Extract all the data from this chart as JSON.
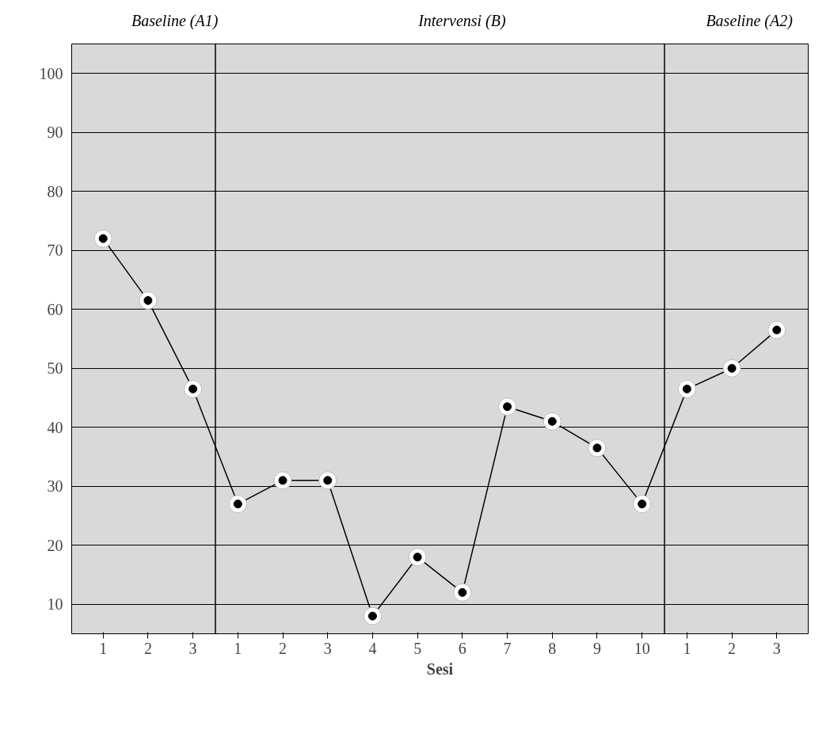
{
  "chart_data": {
    "type": "line",
    "xlabel": "Sesi",
    "categories": [
      "1",
      "2",
      "3",
      "1",
      "2",
      "3",
      "4",
      "5",
      "6",
      "7",
      "8",
      "9",
      "10",
      "1",
      "2",
      "3"
    ],
    "series": [
      {
        "color": "#000000",
        "values": [
          72,
          61.5,
          46.5,
          27,
          31,
          31,
          8,
          18,
          12,
          43.5,
          41,
          36.5,
          27,
          46.5,
          50,
          56.5
        ]
      }
    ],
    "ylim": [
      5,
      105
    ],
    "yticks": [
      10,
      20,
      30,
      40,
      50,
      60,
      70,
      80,
      90,
      100
    ],
    "grid": "y",
    "marker": "circle",
    "line_style": "solid",
    "annotations": [
      "Baseline (A1)",
      "Intervensi (B)",
      "Baseline (A2)"
    ]
  }
}
